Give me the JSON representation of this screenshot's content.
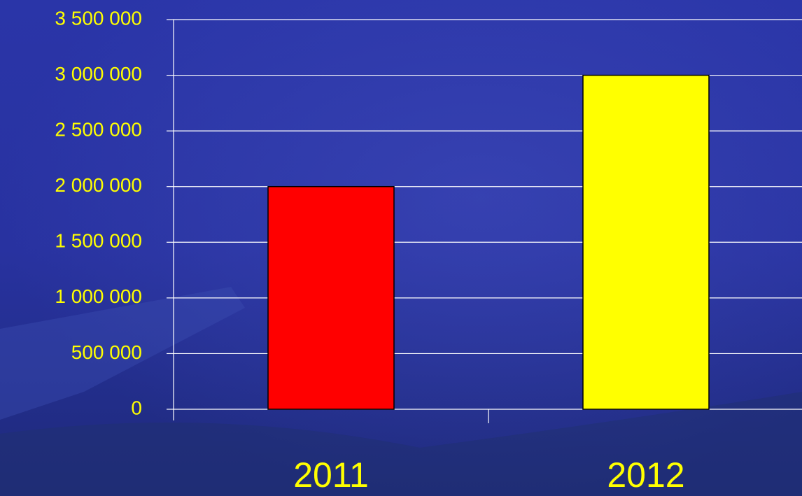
{
  "chart_data": {
    "type": "bar",
    "categories": [
      "2011",
      "2012"
    ],
    "values": [
      2000000,
      3000000
    ],
    "colors": [
      "#ff0000",
      "#ffff00"
    ],
    "ylim": [
      0,
      3500000
    ],
    "yticks": [
      0,
      {
        "value": 500000,
        "label": "500 000"
      },
      {
        "value": 1000000,
        "label": "1 000 000"
      },
      {
        "value": 1500000,
        "label": "1 500 000"
      },
      {
        "value": 2000000,
        "label": "2 000 000"
      },
      {
        "value": 2500000,
        "label": "2 500 000"
      },
      {
        "value": 3000000,
        "label": "3 000 000"
      },
      {
        "value": 3500000,
        "label": "3 500 000"
      }
    ],
    "grid": true
  }
}
